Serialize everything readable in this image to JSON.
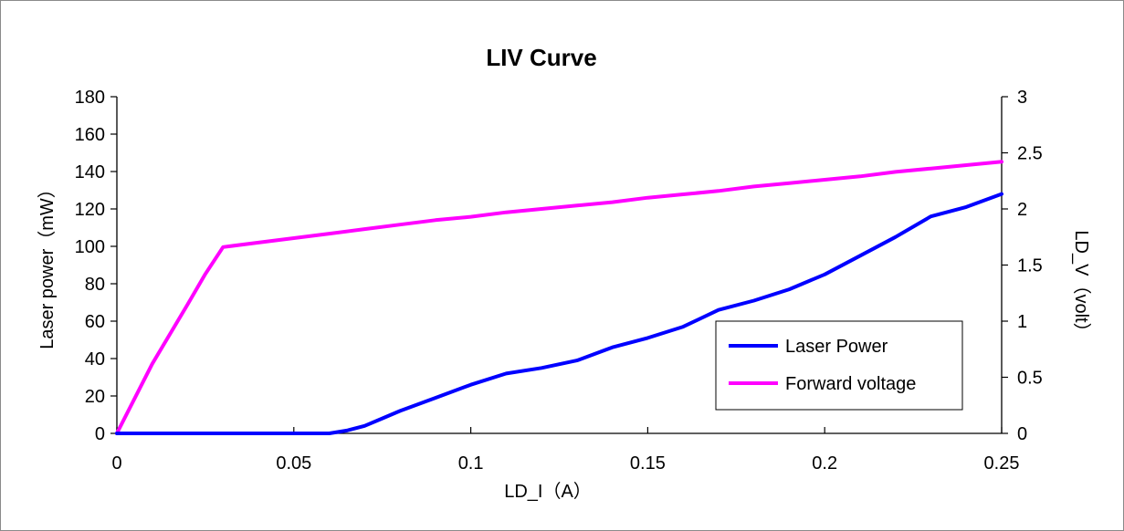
{
  "chart_data": {
    "type": "line",
    "title": "LIV Curve",
    "xlabel": "LD_I（A）",
    "ylabel": "Laser power（mW）",
    "y2label": "LD_V（volt）",
    "xlim": [
      0,
      0.25
    ],
    "ylim": [
      0,
      180
    ],
    "y2lim": [
      0,
      3
    ],
    "xticks": [
      "0",
      "0.05",
      "0.1",
      "0.15",
      "0.2",
      "0.25"
    ],
    "xtick_values": [
      0,
      0.05,
      0.1,
      0.15,
      0.2,
      0.25
    ],
    "yticks": [
      "0",
      "20",
      "40",
      "60",
      "80",
      "100",
      "120",
      "140",
      "160",
      "180"
    ],
    "ytick_values": [
      0,
      20,
      40,
      60,
      80,
      100,
      120,
      140,
      160,
      180
    ],
    "y2ticks": [
      "0",
      "0.5",
      "1",
      "1.5",
      "2",
      "2.5",
      "3"
    ],
    "y2tick_values": [
      0,
      0.5,
      1,
      1.5,
      2,
      2.5,
      3
    ],
    "grid": false,
    "legend_position": "lower-right",
    "series": [
      {
        "name": "Laser Power",
        "axis": "left",
        "color": "#0000ff",
        "x": [
          0,
          0.01,
          0.02,
          0.03,
          0.04,
          0.05,
          0.06,
          0.065,
          0.07,
          0.075,
          0.08,
          0.09,
          0.1,
          0.11,
          0.12,
          0.13,
          0.14,
          0.15,
          0.16,
          0.17,
          0.18,
          0.19,
          0.2,
          0.21,
          0.22,
          0.23,
          0.24,
          0.25
        ],
        "y": [
          0,
          0,
          0,
          0,
          0,
          0,
          0,
          1.5,
          4,
          8,
          12,
          19,
          26,
          32,
          35,
          39,
          46,
          51,
          57,
          66,
          71,
          77,
          85,
          95,
          105,
          116,
          121,
          128
        ]
      },
      {
        "name": "Forward voltage",
        "axis": "right",
        "color": "#ff00ff",
        "x": [
          0,
          0.01,
          0.02,
          0.025,
          0.03,
          0.04,
          0.05,
          0.06,
          0.07,
          0.08,
          0.09,
          0.1,
          0.11,
          0.12,
          0.13,
          0.14,
          0.15,
          0.16,
          0.17,
          0.18,
          0.19,
          0.2,
          0.21,
          0.22,
          0.23,
          0.24,
          0.25
        ],
        "y": [
          0,
          0.62,
          1.15,
          1.42,
          1.66,
          1.7,
          1.74,
          1.78,
          1.82,
          1.86,
          1.9,
          1.93,
          1.97,
          2.0,
          2.03,
          2.06,
          2.1,
          2.13,
          2.16,
          2.2,
          2.23,
          2.26,
          2.29,
          2.33,
          2.36,
          2.39,
          2.42
        ]
      }
    ]
  }
}
